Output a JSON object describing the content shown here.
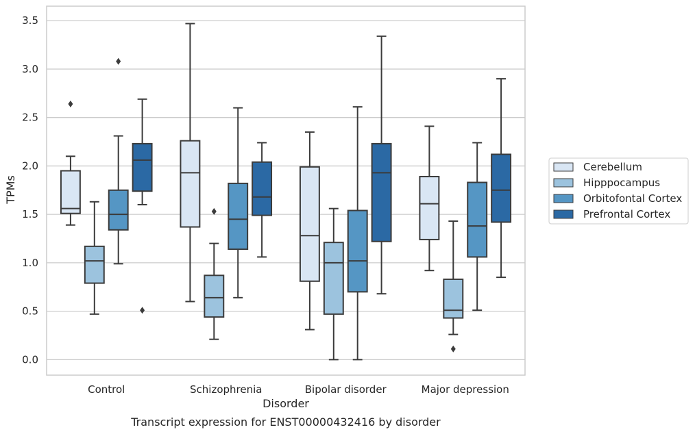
{
  "chart_data": {
    "type": "box",
    "title": "Transcript expression for ENST00000432416 by disorder",
    "xlabel": "Disorder",
    "ylabel": "TPMs",
    "ylim": [
      -0.16,
      3.65
    ],
    "yticks": [
      0.0,
      0.5,
      1.0,
      1.5,
      2.0,
      2.5,
      3.0,
      3.5
    ],
    "ytick_labels": [
      "0.0",
      "0.5",
      "1.0",
      "1.5",
      "2.0",
      "2.5",
      "3.0",
      "3.5"
    ],
    "grid": "horizontal",
    "legend_position": "right",
    "categories": [
      "Control",
      "Schizophrenia",
      "Bipolar disorder",
      "Major depression"
    ],
    "series": [
      {
        "name": "Cerebellum",
        "color": "#d9e6f4",
        "boxes": [
          {
            "whislo": 1.39,
            "q1": 1.51,
            "med": 1.56,
            "q3": 1.95,
            "whishi": 2.1,
            "fliers": [
              2.64
            ]
          },
          {
            "whislo": 0.6,
            "q1": 1.37,
            "med": 1.93,
            "q3": 2.26,
            "whishi": 3.47,
            "fliers": []
          },
          {
            "whislo": 0.31,
            "q1": 0.81,
            "med": 1.28,
            "q3": 1.99,
            "whishi": 2.35,
            "fliers": []
          },
          {
            "whislo": 0.92,
            "q1": 1.24,
            "med": 1.61,
            "q3": 1.89,
            "whishi": 2.41,
            "fliers": []
          }
        ]
      },
      {
        "name": "Hipppocampus",
        "color": "#9cc3de",
        "boxes": [
          {
            "whislo": 0.47,
            "q1": 0.79,
            "med": 1.02,
            "q3": 1.17,
            "whishi": 1.63,
            "fliers": []
          },
          {
            "whislo": 0.21,
            "q1": 0.44,
            "med": 0.64,
            "q3": 0.87,
            "whishi": 1.2,
            "fliers": [
              1.53
            ]
          },
          {
            "whislo": 0.0,
            "q1": 0.47,
            "med": 1.0,
            "q3": 1.21,
            "whishi": 1.56,
            "fliers": []
          },
          {
            "whislo": 0.26,
            "q1": 0.43,
            "med": 0.51,
            "q3": 0.83,
            "whishi": 1.43,
            "fliers": [
              0.11
            ]
          }
        ]
      },
      {
        "name": "Orbitofontal Cortex",
        "color": "#5596c4",
        "boxes": [
          {
            "whislo": 0.99,
            "q1": 1.34,
            "med": 1.5,
            "q3": 1.75,
            "whishi": 2.31,
            "fliers": [
              3.08
            ]
          },
          {
            "whislo": 0.64,
            "q1": 1.14,
            "med": 1.45,
            "q3": 1.82,
            "whishi": 2.6,
            "fliers": []
          },
          {
            "whislo": 0.0,
            "q1": 0.7,
            "med": 1.02,
            "q3": 1.54,
            "whishi": 2.61,
            "fliers": []
          },
          {
            "whislo": 0.51,
            "q1": 1.06,
            "med": 1.38,
            "q3": 1.83,
            "whishi": 2.24,
            "fliers": []
          }
        ]
      },
      {
        "name": "Prefrontal Cortex",
        "color": "#2b69a4",
        "boxes": [
          {
            "whislo": 1.6,
            "q1": 1.74,
            "med": 2.06,
            "q3": 2.23,
            "whishi": 2.69,
            "fliers": [
              0.51
            ]
          },
          {
            "whislo": 1.06,
            "q1": 1.49,
            "med": 1.68,
            "q3": 2.04,
            "whishi": 2.24,
            "fliers": []
          },
          {
            "whislo": 0.68,
            "q1": 1.22,
            "med": 1.93,
            "q3": 2.23,
            "whishi": 3.34,
            "fliers": []
          },
          {
            "whislo": 0.85,
            "q1": 1.42,
            "med": 1.75,
            "q3": 2.12,
            "whishi": 2.9,
            "fliers": []
          }
        ]
      }
    ]
  },
  "colors": {
    "edge": "#3b3b3b",
    "grid": "#cccccc",
    "frame": "#cccccc",
    "text": "#262626"
  }
}
